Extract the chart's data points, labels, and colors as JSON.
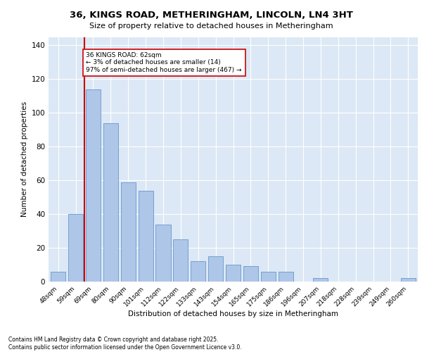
{
  "title_line1": "36, KINGS ROAD, METHERINGHAM, LINCOLN, LN4 3HT",
  "title_line2": "Size of property relative to detached houses in Metheringham",
  "xlabel": "Distribution of detached houses by size in Metheringham",
  "ylabel": "Number of detached properties",
  "categories": [
    "48sqm",
    "59sqm",
    "69sqm",
    "80sqm",
    "90sqm",
    "101sqm",
    "112sqm",
    "122sqm",
    "133sqm",
    "143sqm",
    "154sqm",
    "165sqm",
    "175sqm",
    "186sqm",
    "196sqm",
    "207sqm",
    "218sqm",
    "228sqm",
    "239sqm",
    "249sqm",
    "260sqm"
  ],
  "values": [
    6,
    40,
    114,
    94,
    59,
    54,
    34,
    25,
    12,
    15,
    10,
    9,
    6,
    6,
    0,
    2,
    0,
    0,
    0,
    0,
    2
  ],
  "bar_color": "#aec6e8",
  "bar_edge_color": "#6699cc",
  "vline_x": 1.5,
  "vline_color": "#cc0000",
  "annotation_text": "36 KINGS ROAD: 62sqm\n← 3% of detached houses are smaller (14)\n97% of semi-detached houses are larger (467) →",
  "annotation_box_color": "#ffffff",
  "annotation_box_edge": "#cc0000",
  "ylim": [
    0,
    145
  ],
  "yticks": [
    0,
    20,
    40,
    60,
    80,
    100,
    120,
    140
  ],
  "background_color": "#dce8f5",
  "footer_text": "Contains HM Land Registry data © Crown copyright and database right 2025.\nContains public sector information licensed under the Open Government Licence v3.0."
}
